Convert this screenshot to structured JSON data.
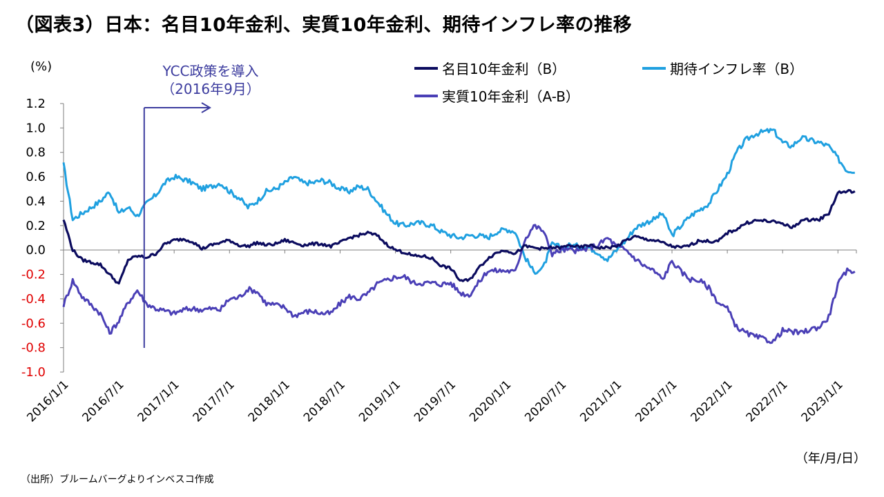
{
  "title": "（図表3）日本：名目10年金利、実質10年金利、期待インフレ率の推移",
  "unit_label": "(%)",
  "date_unit_label": "（年/月/日）",
  "source": "（出所）ブルームバーグよりインベスコ作成",
  "annotation": {
    "line1": "YCC政策を導入",
    "line2": "（2016年9月）",
    "x": "2016-09-21"
  },
  "legend": {
    "nominal": "名目10年金利（B）",
    "inflation": "期待インフレ率（B）",
    "real": "実質10年金利（A-B）"
  },
  "colors": {
    "nominal": "#0b0b5e",
    "inflation": "#1fa0e0",
    "real": "#4a3fb6",
    "negative_tick": "#e00000",
    "annotation": "#3b3b9e"
  },
  "chart_data": {
    "type": "line",
    "xlabel": "",
    "ylabel": "(%)",
    "ylim": [
      -1.0,
      1.2
    ],
    "yticks": [
      "1.2",
      "1.0",
      "0.8",
      "0.6",
      "0.4",
      "0.2",
      "0.0",
      "-0.2",
      "-0.4",
      "-0.6",
      "-0.8",
      "-1.0"
    ],
    "xticks": [
      "2016/1/1",
      "2016/7/1",
      "2017/1/1",
      "2017/7/1",
      "2018/1/1",
      "2018/7/1",
      "2019/1/1",
      "2019/7/1",
      "2020/1/1",
      "2020/7/1",
      "2021/1/1",
      "2021/7/1",
      "2022/1/1",
      "2022/7/1",
      "2023/1/1"
    ],
    "x": [
      "2016-01",
      "2016-02",
      "2016-03",
      "2016-04",
      "2016-05",
      "2016-06",
      "2016-07",
      "2016-08",
      "2016-09",
      "2016-10",
      "2016-11",
      "2016-12",
      "2017-01",
      "2017-02",
      "2017-03",
      "2017-04",
      "2017-05",
      "2017-06",
      "2017-07",
      "2017-08",
      "2017-09",
      "2017-10",
      "2017-11",
      "2017-12",
      "2018-01",
      "2018-02",
      "2018-03",
      "2018-04",
      "2018-05",
      "2018-06",
      "2018-07",
      "2018-08",
      "2018-09",
      "2018-10",
      "2018-11",
      "2018-12",
      "2019-01",
      "2019-02",
      "2019-03",
      "2019-04",
      "2019-05",
      "2019-06",
      "2019-07",
      "2019-08",
      "2019-09",
      "2019-10",
      "2019-11",
      "2019-12",
      "2020-01",
      "2020-02",
      "2020-03",
      "2020-04",
      "2020-05",
      "2020-06",
      "2020-07",
      "2020-08",
      "2020-09",
      "2020-10",
      "2020-11",
      "2020-12",
      "2021-01",
      "2021-02",
      "2021-03",
      "2021-04",
      "2021-05",
      "2021-06",
      "2021-07",
      "2021-08",
      "2021-09",
      "2021-10",
      "2021-11",
      "2021-12",
      "2022-01",
      "2022-02",
      "2022-03",
      "2022-04",
      "2022-05",
      "2022-06",
      "2022-07",
      "2022-08",
      "2022-09",
      "2022-10",
      "2022-11",
      "2022-12",
      "2023-01",
      "2023-02"
    ],
    "series": [
      {
        "name": "名目10年金利（B）",
        "key": "nominal",
        "values": [
          0.25,
          0.0,
          -0.08,
          -0.1,
          -0.12,
          -0.2,
          -0.28,
          -0.08,
          -0.05,
          -0.06,
          -0.03,
          0.05,
          0.08,
          0.09,
          0.07,
          0.01,
          0.04,
          0.06,
          0.08,
          0.04,
          0.03,
          0.06,
          0.04,
          0.05,
          0.08,
          0.06,
          0.04,
          0.05,
          0.05,
          0.03,
          0.06,
          0.1,
          0.12,
          0.14,
          0.12,
          0.05,
          0.0,
          -0.02,
          -0.05,
          -0.05,
          -0.07,
          -0.13,
          -0.15,
          -0.25,
          -0.25,
          -0.15,
          -0.07,
          -0.02,
          0.0,
          -0.03,
          0.03,
          0.02,
          0.01,
          0.02,
          0.02,
          0.04,
          0.02,
          0.04,
          0.02,
          0.02,
          0.03,
          0.08,
          0.11,
          0.09,
          0.08,
          0.06,
          0.03,
          0.02,
          0.04,
          0.08,
          0.07,
          0.07,
          0.14,
          0.17,
          0.22,
          0.24,
          0.24,
          0.23,
          0.22,
          0.18,
          0.24,
          0.25,
          0.25,
          0.3,
          0.47,
          0.48
        ]
      },
      {
        "name": "期待インフレ率（B）",
        "key": "inflation",
        "values": [
          0.7,
          0.25,
          0.3,
          0.35,
          0.4,
          0.48,
          0.3,
          0.35,
          0.28,
          0.38,
          0.45,
          0.55,
          0.6,
          0.58,
          0.55,
          0.5,
          0.52,
          0.55,
          0.48,
          0.43,
          0.35,
          0.4,
          0.48,
          0.5,
          0.55,
          0.6,
          0.55,
          0.55,
          0.57,
          0.55,
          0.5,
          0.48,
          0.52,
          0.5,
          0.4,
          0.3,
          0.22,
          0.2,
          0.22,
          0.22,
          0.2,
          0.15,
          0.12,
          0.1,
          0.12,
          0.12,
          0.1,
          0.15,
          0.17,
          0.15,
          -0.05,
          -0.18,
          -0.15,
          0.05,
          0.02,
          0.04,
          0.03,
          0.02,
          -0.02,
          -0.08,
          0.0,
          0.08,
          0.18,
          0.22,
          0.25,
          0.3,
          0.12,
          0.2,
          0.28,
          0.33,
          0.38,
          0.5,
          0.62,
          0.8,
          0.9,
          0.95,
          0.97,
          0.98,
          0.88,
          0.85,
          0.92,
          0.9,
          0.88,
          0.85,
          0.75,
          0.65
        ]
      },
      {
        "name": "実質10年金利（A-B）",
        "key": "real",
        "values": [
          -0.45,
          -0.25,
          -0.38,
          -0.45,
          -0.52,
          -0.68,
          -0.58,
          -0.43,
          -0.33,
          -0.44,
          -0.48,
          -0.5,
          -0.52,
          -0.49,
          -0.48,
          -0.49,
          -0.48,
          -0.49,
          -0.4,
          -0.39,
          -0.32,
          -0.34,
          -0.44,
          -0.45,
          -0.47,
          -0.54,
          -0.51,
          -0.5,
          -0.52,
          -0.52,
          -0.44,
          -0.38,
          -0.4,
          -0.36,
          -0.28,
          -0.25,
          -0.22,
          -0.22,
          -0.27,
          -0.27,
          -0.27,
          -0.28,
          -0.27,
          -0.35,
          -0.37,
          -0.27,
          -0.17,
          -0.17,
          -0.17,
          -0.18,
          0.08,
          0.2,
          0.16,
          -0.03,
          0.0,
          0.0,
          -0.01,
          0.02,
          0.04,
          0.1,
          0.03,
          0.0,
          -0.07,
          -0.13,
          -0.17,
          -0.24,
          -0.09,
          -0.18,
          -0.24,
          -0.25,
          -0.31,
          -0.43,
          -0.48,
          -0.63,
          -0.68,
          -0.71,
          -0.73,
          -0.75,
          -0.66,
          -0.67,
          -0.68,
          -0.65,
          -0.63,
          -0.55,
          -0.28,
          -0.17
        ]
      }
    ],
    "legend_position": "top-right",
    "grid": false
  }
}
